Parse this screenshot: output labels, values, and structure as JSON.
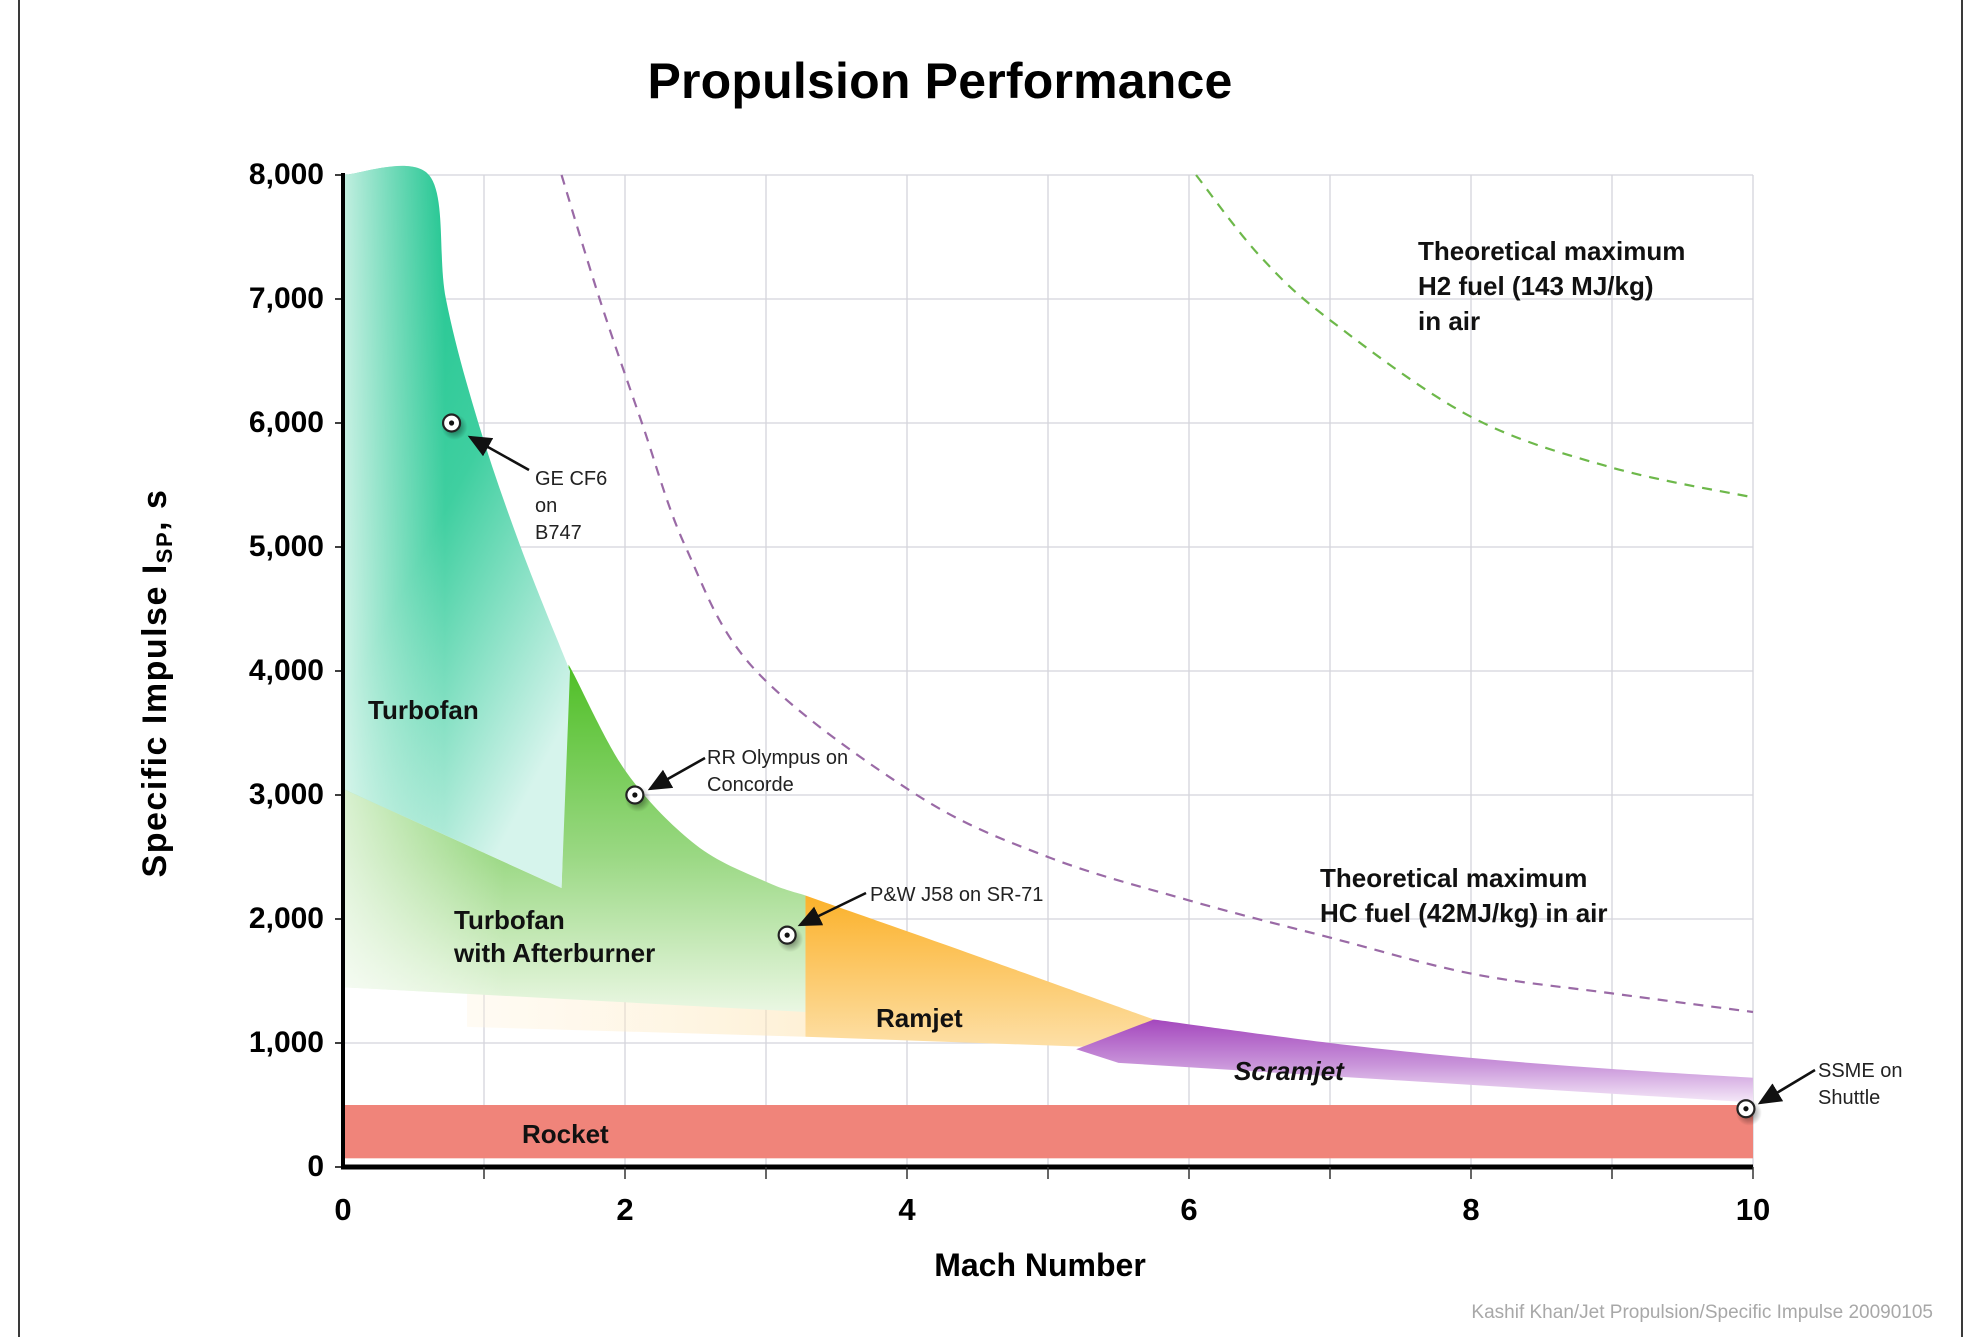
{
  "title": "Propulsion Performance",
  "credit": "Kashif Khan/Jet Propulsion/Specific Impulse 20090105",
  "axes": {
    "x": {
      "label": "Mach Number",
      "ticks": [
        {
          "value": 0,
          "label": "0"
        },
        {
          "value": 2,
          "label": "2"
        },
        {
          "value": 4,
          "label": "4"
        },
        {
          "value": 6,
          "label": "6"
        },
        {
          "value": 8,
          "label": "8"
        },
        {
          "value": 10,
          "label": "10"
        }
      ]
    },
    "y": {
      "label_main": "Specific Impulse I",
      "label_sub": "SP",
      "label_unit": ",  s",
      "ticks": [
        {
          "value": 0,
          "label": "0"
        },
        {
          "value": 1000,
          "label": "1,000"
        },
        {
          "value": 2000,
          "label": "2,000"
        },
        {
          "value": 3000,
          "label": "3,000"
        },
        {
          "value": 4000,
          "label": "4,000"
        },
        {
          "value": 5000,
          "label": "5,000"
        },
        {
          "value": 6000,
          "label": "6,000"
        },
        {
          "value": 7000,
          "label": "7,000"
        },
        {
          "value": 8000,
          "label": "8,000"
        }
      ]
    }
  },
  "regions": {
    "turbofan": {
      "label": "Turbofan",
      "color": "#1dc48e"
    },
    "afterburner": {
      "label_line1": "Turbofan",
      "label_line2": "with Afterburner",
      "color": "#5cc036"
    },
    "ramjet": {
      "label": "Ramjet",
      "color": "#fbb832"
    },
    "scramjet": {
      "label": "Scramjet",
      "color": "#a84dbf"
    },
    "rocket": {
      "label": "Rocket",
      "color": "#f0847a"
    }
  },
  "curves": {
    "h2": {
      "label_lines": [
        "Theoretical maximum",
        "H2 fuel (143 MJ/kg)",
        "in air"
      ],
      "color": "#6db84a"
    },
    "hc": {
      "label_lines": [
        "Theoretical maximum",
        "HC fuel (42MJ/kg) in air"
      ],
      "color": "#9a6aa6"
    }
  },
  "annotations": {
    "ge_cf6": {
      "lines": [
        "GE CF6",
        "on",
        "B747"
      ]
    },
    "rr_olympus": {
      "lines": [
        "RR Olympus on",
        "Concorde"
      ]
    },
    "pw_j58": {
      "lines": [
        "P&W J58 on SR-71"
      ]
    },
    "ssme": {
      "lines": [
        "SSME on",
        "Shuttle"
      ]
    }
  },
  "chart_data": {
    "type": "area",
    "title": "Propulsion Performance",
    "xlabel": "Mach Number",
    "ylabel": "Specific Impulse I_SP, s",
    "xlim": [
      0,
      10
    ],
    "ylim": [
      0,
      8000
    ],
    "grid": true,
    "x_ticks": [
      0,
      2,
      4,
      6,
      8,
      10
    ],
    "y_ticks": [
      0,
      1000,
      2000,
      3000,
      4000,
      5000,
      6000,
      7000,
      8000
    ],
    "series": [
      {
        "name": "Turbofan",
        "kind": "region",
        "upper": [
          [
            0,
            8000
          ],
          [
            0.61,
            8000
          ],
          [
            0.73,
            7000
          ],
          [
            0.96,
            6000
          ],
          [
            1.26,
            5000
          ],
          [
            1.61,
            4000
          ]
        ],
        "lower": [
          [
            0,
            3050
          ],
          [
            1.55,
            2250
          ]
        ]
      },
      {
        "name": "Turbofan with Afterburner",
        "kind": "region",
        "upper": [
          [
            1.61,
            4050
          ],
          [
            2.0,
            3200
          ],
          [
            2.5,
            2600
          ],
          [
            3.0,
            2300
          ],
          [
            3.28,
            2190
          ]
        ],
        "lower": [
          [
            0,
            1450
          ],
          [
            3.28,
            1250
          ]
        ]
      },
      {
        "name": "Ramjet",
        "kind": "region",
        "upper": [
          [
            3.28,
            2190
          ],
          [
            4.5,
            1700
          ],
          [
            5.75,
            1190
          ]
        ],
        "lower": [
          [
            3.28,
            1050
          ],
          [
            5.75,
            950
          ]
        ]
      },
      {
        "name": "Scramjet",
        "kind": "region",
        "upper": [
          [
            5.75,
            1190
          ],
          [
            7,
            1000
          ],
          [
            8,
            880
          ],
          [
            9,
            790
          ],
          [
            10,
            720
          ]
        ],
        "lower": [
          [
            5.75,
            950
          ],
          [
            10,
            520
          ]
        ]
      },
      {
        "name": "Rocket",
        "kind": "band",
        "x": [
          0,
          10
        ],
        "lower": 70,
        "upper": 500
      },
      {
        "name": "Theoretical maximum H2 fuel (143 MJ/kg) in air",
        "kind": "dashed-line",
        "points": [
          [
            6.05,
            8000
          ],
          [
            6.5,
            7350
          ],
          [
            7,
            6830
          ],
          [
            8,
            6050
          ],
          [
            9,
            5640
          ],
          [
            10,
            5400
          ]
        ]
      },
      {
        "name": "Theoretical maximum HC fuel (42MJ/kg) in air",
        "kind": "dashed-line",
        "points": [
          [
            1.55,
            8000
          ],
          [
            1.82,
            7000
          ],
          [
            2.12,
            6000
          ],
          [
            2.43,
            5000
          ],
          [
            2.93,
            4000
          ],
          [
            4.07,
            3000
          ],
          [
            5,
            2500
          ],
          [
            6,
            2150
          ],
          [
            7,
            1850
          ],
          [
            8,
            1560
          ],
          [
            9,
            1400
          ],
          [
            10,
            1250
          ]
        ]
      }
    ],
    "points": [
      {
        "label": "GE CF6 on B747",
        "x": 0.77,
        "y": 6000
      },
      {
        "label": "RR Olympus on Concorde",
        "x": 2.07,
        "y": 3000
      },
      {
        "label": "P&W J58 on SR-71",
        "x": 3.15,
        "y": 1870
      },
      {
        "label": "SSME on Shuttle",
        "x": 9.95,
        "y": 470
      }
    ]
  }
}
